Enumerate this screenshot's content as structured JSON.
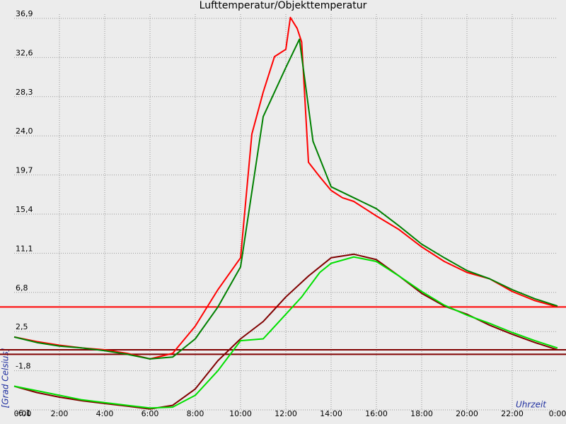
{
  "chart_data": {
    "type": "line",
    "title": "Lufttemperatur/Objekttemperatur",
    "xlabel": "Uhrzeit",
    "ylabel": "[Grad Celsius]",
    "xlim": [
      0,
      24
    ],
    "xticks": [
      {
        "value": 0,
        "label": "0:00"
      },
      {
        "value": 2,
        "label": "2:00"
      },
      {
        "value": 4,
        "label": "4:00"
      },
      {
        "value": 6,
        "label": "6:00"
      },
      {
        "value": 8,
        "label": "8:00"
      },
      {
        "value": 10,
        "label": "10:00"
      },
      {
        "value": 12,
        "label": "12:00"
      },
      {
        "value": 14,
        "label": "14:00"
      },
      {
        "value": 16,
        "label": "16:00"
      },
      {
        "value": 18,
        "label": "18:00"
      },
      {
        "value": 20,
        "label": "20:00"
      },
      {
        "value": 22,
        "label": "22:00"
      },
      {
        "value": 24,
        "label": "0:00"
      }
    ],
    "ylim": [
      -6.1,
      36.9
    ],
    "yticks": [
      {
        "value": -6.1,
        "label": "-6,1"
      },
      {
        "value": -1.8,
        "label": "-1,8"
      },
      {
        "value": 2.5,
        "label": "2,5"
      },
      {
        "value": 6.8,
        "label": "6,8"
      },
      {
        "value": 11.1,
        "label": "11,1"
      },
      {
        "value": 15.4,
        "label": "15,4"
      },
      {
        "value": 19.7,
        "label": "19,7"
      },
      {
        "value": 24.0,
        "label": "24,0"
      },
      {
        "value": 28.3,
        "label": "28,3"
      },
      {
        "value": 32.6,
        "label": "32,6"
      },
      {
        "value": 36.9,
        "label": "36,9"
      }
    ],
    "grid": true,
    "hlines": [
      {
        "value": 5.2,
        "color": "#ff0000"
      },
      {
        "value": 0.5,
        "color": "#800000"
      },
      {
        "value": 0.0,
        "color": "#800000"
      }
    ],
    "series": [
      {
        "color": "#ff0000",
        "x": [
          0,
          1,
          2,
          3,
          4,
          5,
          6,
          7,
          8,
          9,
          10,
          10.5,
          11,
          11.5,
          12,
          12.2,
          12.5,
          12.7,
          13,
          13.5,
          14,
          14.5,
          15,
          15.5,
          16,
          17,
          18,
          19,
          20,
          21,
          22,
          23,
          24
        ],
        "values": [
          1.9,
          1.4,
          1.0,
          0.7,
          0.5,
          0.1,
          -0.5,
          0.1,
          3.1,
          7.1,
          10.6,
          24.2,
          28.8,
          32.7,
          33.5,
          37.0,
          35.8,
          34.3,
          21.1,
          19.5,
          18.0,
          17.2,
          16.8,
          16.0,
          15.2,
          13.7,
          11.8,
          10.2,
          9.0,
          8.3,
          6.9,
          5.9,
          5.2
        ]
      },
      {
        "color": "#008000",
        "x": [
          0,
          1,
          2,
          3,
          4,
          5,
          6,
          7,
          8,
          9,
          10,
          11,
          12,
          12.6,
          13.2,
          14,
          15,
          16,
          17,
          18,
          19,
          20,
          21,
          22,
          23,
          24
        ],
        "values": [
          1.9,
          1.3,
          0.9,
          0.7,
          0.4,
          0.0,
          -0.5,
          -0.3,
          1.7,
          5.2,
          9.6,
          26.1,
          31.5,
          34.6,
          23.4,
          18.4,
          17.2,
          16.0,
          14.1,
          12.1,
          10.6,
          9.2,
          8.3,
          7.1,
          6.1,
          5.3
        ]
      },
      {
        "color": "#800000",
        "x": [
          0,
          1,
          2,
          3,
          4,
          5,
          6,
          7,
          8,
          9,
          10,
          11,
          12,
          13,
          14,
          15,
          16,
          17,
          18,
          19,
          20,
          21,
          22,
          23,
          24
        ],
        "values": [
          -3.5,
          -4.2,
          -4.7,
          -5.1,
          -5.4,
          -5.7,
          -6.0,
          -5.6,
          -3.8,
          -0.7,
          1.7,
          3.6,
          6.3,
          8.6,
          10.6,
          11.0,
          10.4,
          8.6,
          6.7,
          5.3,
          4.4,
          3.2,
          2.2,
          1.3,
          0.5
        ]
      },
      {
        "color": "#00e000",
        "x": [
          0,
          1,
          2,
          3,
          4,
          5,
          6,
          7,
          8,
          9,
          10,
          11,
          12,
          12.7,
          13.5,
          14,
          15,
          16,
          17,
          18,
          19,
          20,
          21,
          22,
          23,
          24
        ],
        "values": [
          -3.5,
          -4.0,
          -4.5,
          -5.0,
          -5.3,
          -5.6,
          -5.9,
          -5.8,
          -4.5,
          -1.8,
          1.5,
          1.7,
          4.4,
          6.3,
          9.0,
          10.0,
          10.7,
          10.2,
          8.6,
          6.9,
          5.4,
          4.3,
          3.4,
          2.4,
          1.5,
          0.7
        ]
      }
    ]
  }
}
